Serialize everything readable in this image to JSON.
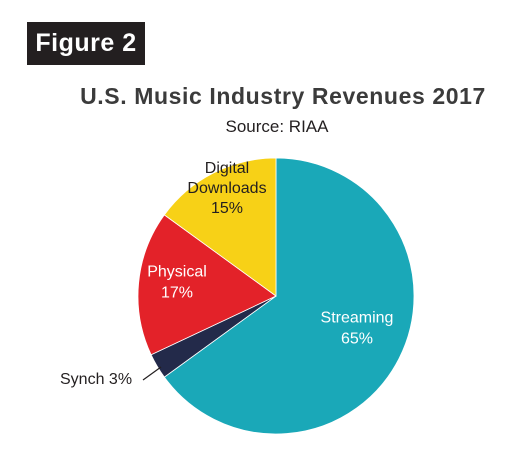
{
  "figure_label": "Figure 2",
  "chart_data": {
    "type": "pie",
    "title": "U.S. Music Industry Revenues 2017",
    "subtitle": "Source: RIAA",
    "slices": [
      {
        "name": "Streaming",
        "value": 65,
        "label": "65%",
        "color": "#1aa8b8",
        "label_color": "#ffffff"
      },
      {
        "name": "Synch",
        "value": 3,
        "label": "3%",
        "color": "#232a4a",
        "label_color": "#231f20"
      },
      {
        "name": "Physical",
        "value": 17,
        "label": "17%",
        "color": "#e32229",
        "label_color": "#ffffff"
      },
      {
        "name": "Digital Downloads",
        "value": 15,
        "label": "15%",
        "color": "#f7d117",
        "label_color": "#231f20"
      }
    ],
    "start": "12 o'clock",
    "direction": "clockwise"
  }
}
